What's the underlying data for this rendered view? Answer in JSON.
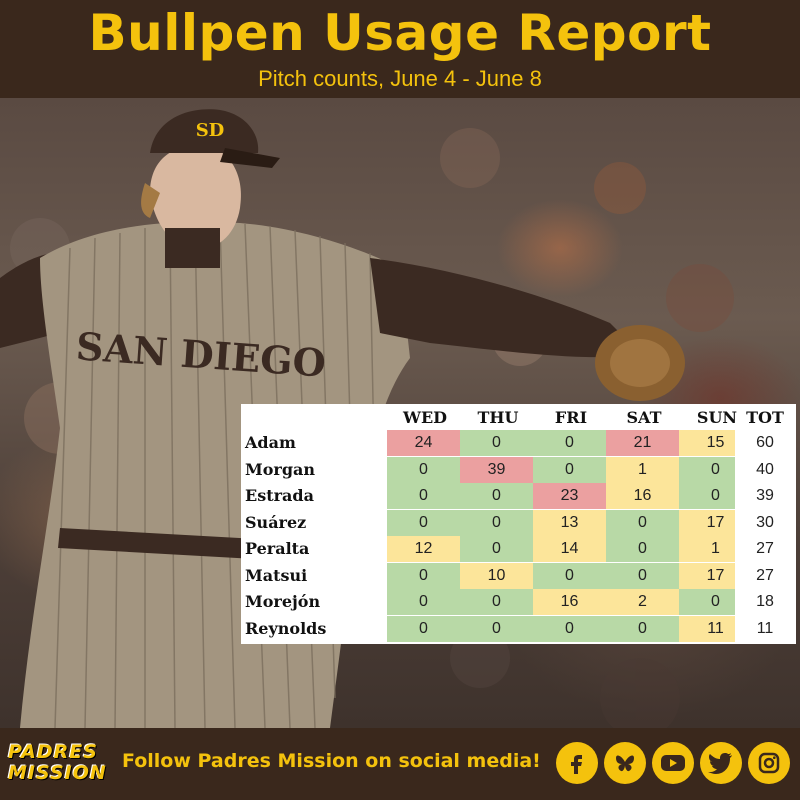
{
  "header": {
    "title": "Bullpen Usage Report",
    "subtitle": "Pitch counts, June 4 - June 8"
  },
  "photo": {
    "jersey_text": "SAN DIEGO",
    "cap_logo": "SD"
  },
  "table": {
    "columns": [
      "WED",
      "THU",
      "FRI",
      "SAT",
      "SUN",
      "TOT"
    ],
    "rows": [
      {
        "name": "Adam",
        "values": [
          "24",
          "0",
          "0",
          "21",
          "15"
        ],
        "total": "60",
        "colors": [
          "red",
          "green",
          "green",
          "red",
          "yellow"
        ]
      },
      {
        "name": "Morgan",
        "values": [
          "0",
          "39",
          "0",
          "1",
          "0"
        ],
        "total": "40",
        "colors": [
          "green",
          "red",
          "green",
          "yellow",
          "green"
        ]
      },
      {
        "name": "Estrada",
        "values": [
          "0",
          "0",
          "23",
          "16",
          "0"
        ],
        "total": "39",
        "colors": [
          "green",
          "green",
          "red",
          "yellow",
          "green"
        ]
      },
      {
        "name": "Suárez",
        "values": [
          "0",
          "0",
          "13",
          "0",
          "17"
        ],
        "total": "30",
        "colors": [
          "green",
          "green",
          "yellow",
          "green",
          "yellow"
        ]
      },
      {
        "name": "Peralta",
        "values": [
          "12",
          "0",
          "14",
          "0",
          "1"
        ],
        "total": "27",
        "colors": [
          "yellow",
          "green",
          "yellow",
          "green",
          "yellow"
        ]
      },
      {
        "name": "Matsui",
        "values": [
          "0",
          "10",
          "0",
          "0",
          "17"
        ],
        "total": "27",
        "colors": [
          "green",
          "yellow",
          "green",
          "green",
          "yellow"
        ]
      },
      {
        "name": "Morejón",
        "values": [
          "0",
          "0",
          "16",
          "2",
          "0"
        ],
        "total": "18",
        "colors": [
          "green",
          "green",
          "yellow",
          "yellow",
          "green"
        ]
      },
      {
        "name": "Reynolds",
        "values": [
          "0",
          "0",
          "0",
          "0",
          "11"
        ],
        "total": "11",
        "colors": [
          "green",
          "green",
          "green",
          "green",
          "yellow"
        ]
      }
    ]
  },
  "footer": {
    "logo_line1": "PADRES",
    "logo_line2": "MISSION",
    "follow_text": "Follow Padres Mission on social media!",
    "social_icons": [
      "facebook-icon",
      "bluesky-icon",
      "youtube-icon",
      "twitter-icon",
      "instagram-icon"
    ]
  },
  "colors": {
    "brand_brown": "#3a281c",
    "brand_gold": "#f4c20d",
    "cell_green": "#b8d9a6",
    "cell_yellow": "#fce59a",
    "cell_red": "#eba0a0"
  }
}
